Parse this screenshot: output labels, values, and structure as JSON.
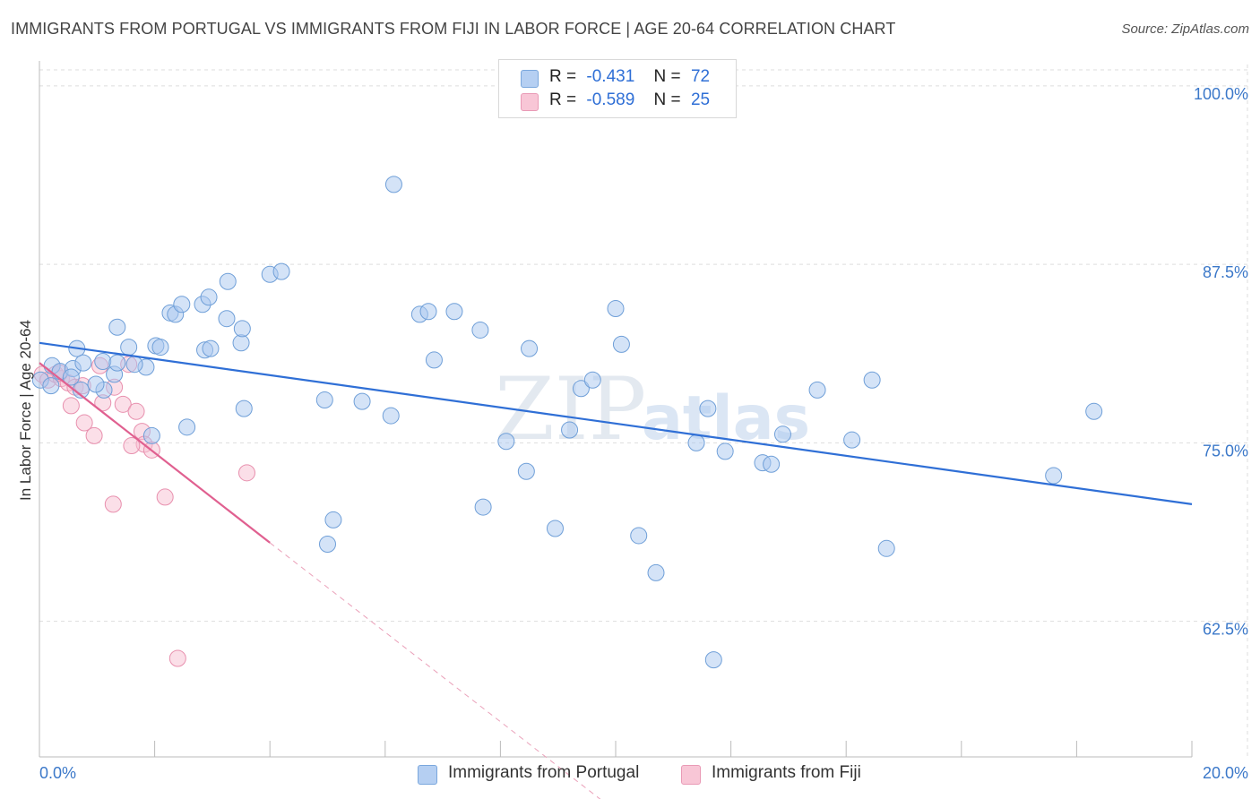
{
  "title": "IMMIGRANTS FROM PORTUGAL VS IMMIGRANTS FROM FIJI IN LABOR FORCE | AGE 20-64 CORRELATION CHART",
  "source": "Source: ZipAtlas.com",
  "colors": {
    "portugal_fill": "#aac8f0",
    "portugal_stroke": "#6f9fd8",
    "portugal_line": "#2f6fd6",
    "fiji_fill": "#f7c0d2",
    "fiji_stroke": "#e890ae",
    "fiji_line": "#e06090",
    "tick_text": "#3b78c9",
    "grid": "#dddddd"
  },
  "legend": {
    "rows": [
      {
        "r_label": "R =",
        "r_value": "-0.431",
        "n_label": "N =",
        "n_value": "72"
      },
      {
        "r_label": "R =",
        "r_value": "-0.589",
        "n_label": "N =",
        "n_value": "25"
      }
    ]
  },
  "bottom_legend": {
    "portugal": "Immigrants from Portugal",
    "fiji": "Immigrants from Fiji"
  },
  "watermark": {
    "zip": "ZIP",
    "atlas": "atlas"
  },
  "chart_data": {
    "type": "scatter",
    "title": "IMMIGRANTS FROM PORTUGAL VS IMMIGRANTS FROM FIJI IN LABOR FORCE | AGE 20-64 CORRELATION CHART",
    "xlabel": "",
    "ylabel": "In Labor Force | Age 20-64",
    "xlim": [
      0,
      20
    ],
    "ylim": [
      53,
      101.5
    ],
    "x_tick_labels": [
      "0.0%",
      "20.0%"
    ],
    "y_ticks": [
      62.5,
      75.0,
      87.5,
      100.0
    ],
    "y_tick_labels": [
      "62.5%",
      "75.0%",
      "87.5%",
      "100.0%"
    ],
    "grid": true,
    "legend_position": "top-center",
    "series": [
      {
        "name": "Immigrants from Portugal",
        "r": -0.431,
        "n": 72,
        "trend": {
          "x": [
            0,
            20
          ],
          "y": [
            82.0,
            70.7
          ]
        },
        "points": [
          [
            0.02,
            79.4
          ],
          [
            0.22,
            80.4
          ],
          [
            0.36,
            80.0
          ],
          [
            0.58,
            80.2
          ],
          [
            0.65,
            81.6
          ],
          [
            0.72,
            78.7
          ],
          [
            0.76,
            80.6
          ],
          [
            1.1,
            80.7
          ],
          [
            1.12,
            78.7
          ],
          [
            1.3,
            79.8
          ],
          [
            1.35,
            80.6
          ],
          [
            0.98,
            79.1
          ],
          [
            1.35,
            83.1
          ],
          [
            1.85,
            80.3
          ],
          [
            1.55,
            81.7
          ],
          [
            1.65,
            80.5
          ],
          [
            1.95,
            75.5
          ],
          [
            2.02,
            81.8
          ],
          [
            2.1,
            81.7
          ],
          [
            2.27,
            84.1
          ],
          [
            2.36,
            84.0
          ],
          [
            2.47,
            84.7
          ],
          [
            2.56,
            76.1
          ],
          [
            2.83,
            84.7
          ],
          [
            2.94,
            85.2
          ],
          [
            2.87,
            81.5
          ],
          [
            2.97,
            81.6
          ],
          [
            3.25,
            83.7
          ],
          [
            3.27,
            86.3
          ],
          [
            3.5,
            82.0
          ],
          [
            3.52,
            83.0
          ],
          [
            3.55,
            77.4
          ],
          [
            4.0,
            86.8
          ],
          [
            4.2,
            87.0
          ],
          [
            4.95,
            78.0
          ],
          [
            5.0,
            67.9
          ],
          [
            5.1,
            69.6
          ],
          [
            5.6,
            77.9
          ],
          [
            6.1,
            76.9
          ],
          [
            6.15,
            93.1
          ],
          [
            6.6,
            84.0
          ],
          [
            6.75,
            84.2
          ],
          [
            6.85,
            80.8
          ],
          [
            7.2,
            84.2
          ],
          [
            7.65,
            82.9
          ],
          [
            7.7,
            70.5
          ],
          [
            8.1,
            75.1
          ],
          [
            8.45,
            73.0
          ],
          [
            8.5,
            81.6
          ],
          [
            8.95,
            69.0
          ],
          [
            9.2,
            75.9
          ],
          [
            9.4,
            78.8
          ],
          [
            9.6,
            79.4
          ],
          [
            10.0,
            84.4
          ],
          [
            10.1,
            81.9
          ],
          [
            10.4,
            68.5
          ],
          [
            10.7,
            65.9
          ],
          [
            11.4,
            75.0
          ],
          [
            11.6,
            77.4
          ],
          [
            11.7,
            59.8
          ],
          [
            11.9,
            74.4
          ],
          [
            12.55,
            73.6
          ],
          [
            12.7,
            73.5
          ],
          [
            12.9,
            75.6
          ],
          [
            13.5,
            78.7
          ],
          [
            14.1,
            75.2
          ],
          [
            14.45,
            79.4
          ],
          [
            14.7,
            67.6
          ],
          [
            17.6,
            72.7
          ],
          [
            18.3,
            77.2
          ],
          [
            0.2,
            79.0
          ],
          [
            0.55,
            79.6
          ]
        ]
      },
      {
        "name": "Immigrants from Fiji",
        "r": -0.589,
        "n": 25,
        "trend": {
          "x": [
            0,
            4.0
          ],
          "y": [
            80.6,
            68.0
          ]
        },
        "trend_extension": {
          "x": [
            4.0,
            10.0
          ],
          "y": [
            68.0,
            49.2
          ]
        },
        "points": [
          [
            0.05,
            79.8
          ],
          [
            0.15,
            79.4
          ],
          [
            0.28,
            79.8
          ],
          [
            0.38,
            79.5
          ],
          [
            0.5,
            79.2
          ],
          [
            0.62,
            78.9
          ],
          [
            0.75,
            79.0
          ],
          [
            0.55,
            77.6
          ],
          [
            0.78,
            76.4
          ],
          [
            0.95,
            75.5
          ],
          [
            1.1,
            77.8
          ],
          [
            1.05,
            80.4
          ],
          [
            1.3,
            78.9
          ],
          [
            1.45,
            77.7
          ],
          [
            1.55,
            80.5
          ],
          [
            1.68,
            77.2
          ],
          [
            1.78,
            75.8
          ],
          [
            1.82,
            74.9
          ],
          [
            1.95,
            74.5
          ],
          [
            1.6,
            74.8
          ],
          [
            2.18,
            71.2
          ],
          [
            1.28,
            70.7
          ],
          [
            3.6,
            72.9
          ],
          [
            2.4,
            59.9
          ],
          [
            0.35,
            79.9
          ]
        ]
      }
    ]
  }
}
